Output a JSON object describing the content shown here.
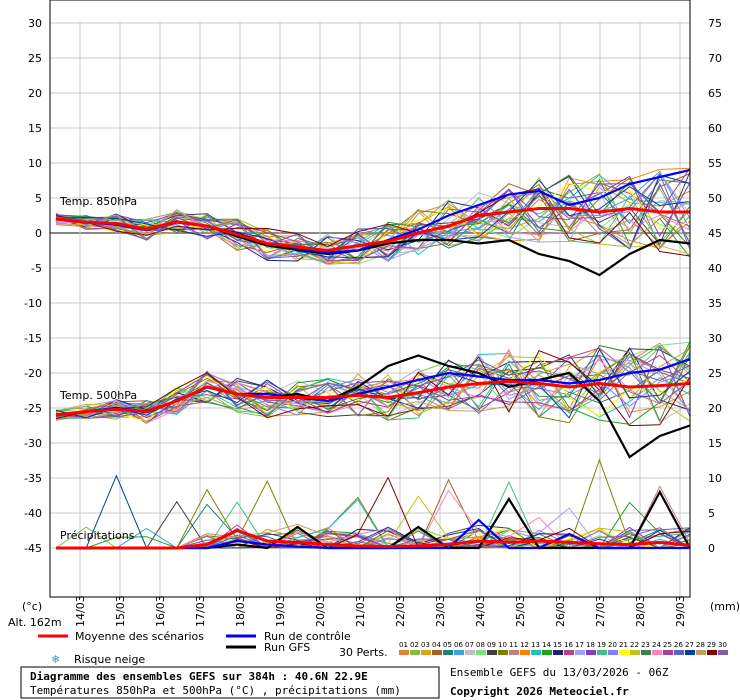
{
  "chart_data": {
    "type": "line",
    "x_dates": [
      "14/03",
      "15/03",
      "16/03",
      "17/03",
      "18/03",
      "19/03",
      "20/03",
      "21/03",
      "22/03",
      "23/03",
      "24/03",
      "25/03",
      "26/03",
      "27/03",
      "28/03",
      "29/03"
    ],
    "x_day_range": [
      13.25,
      29.25
    ],
    "y_left_ticks": [
      30,
      25,
      20,
      15,
      10,
      5,
      0,
      -5,
      -10,
      -15,
      -20,
      -25,
      -30,
      -35,
      -40,
      -45
    ],
    "y_left_range": [
      -45,
      30
    ],
    "y_right_ticks": [
      75,
      70,
      65,
      60,
      55,
      50,
      45,
      40,
      35,
      30,
      25,
      20,
      15,
      10,
      5,
      0
    ],
    "y_right_range": [
      0,
      75
    ],
    "left_unit": "(°c)",
    "right_unit": "(mm)",
    "altitude": "Alt. 162m",
    "annotations": {
      "t850": "Temp. 850hPa",
      "t500": "Temp. 500hPa",
      "precip": "Précipitations"
    },
    "series": [
      {
        "name": "Moyenne des scénarios",
        "color": "#ff0000",
        "t850": [
          2,
          1.5,
          1.4,
          0.5,
          1.6,
          1.0,
          -0.2,
          -1.5,
          -2,
          -2.5,
          -1.8,
          -1.2,
          0,
          1,
          2.5,
          3,
          3.5,
          3.5,
          3,
          3.5,
          3,
          3
        ],
        "t500": [
          -26,
          -25.5,
          -25.2,
          -25.5,
          -24,
          -22,
          -23,
          -23.5,
          -23.5,
          -23.5,
          -23.2,
          -23.5,
          -22.8,
          -22,
          -21.5,
          -21.2,
          -21.5,
          -22,
          -21.5,
          -22,
          -21.8,
          -21.5
        ],
        "precip": [
          0,
          0,
          0,
          0,
          0,
          0.5,
          2.5,
          1,
          0.8,
          0.5,
          0.3,
          0.2,
          0.3,
          0.5,
          1,
          0.8,
          1,
          0.8,
          0.6,
          0.5,
          0.8,
          0.4
        ]
      },
      {
        "name": "Run de contrôle",
        "color": "#0000ff",
        "t850": [
          2,
          1.5,
          1.2,
          0.4,
          1.5,
          1,
          0,
          -1.5,
          -2.2,
          -2.8,
          -2.5,
          -1,
          0.5,
          2.5,
          4,
          5.5,
          6,
          4,
          5,
          7,
          8,
          9
        ],
        "t500": [
          -26,
          -25.5,
          -25,
          -25.5,
          -24,
          -22,
          -23,
          -23,
          -23.5,
          -24,
          -23,
          -22,
          -21,
          -20,
          -20.5,
          -21,
          -21,
          -21.5,
          -21,
          -20,
          -19.5,
          -18
        ],
        "precip": [
          0,
          0,
          0,
          0,
          0,
          0,
          1,
          0.5,
          0.2,
          0,
          0,
          0,
          0,
          0,
          4,
          0,
          0,
          2,
          0,
          0,
          0,
          0
        ]
      },
      {
        "name": "Run GFS",
        "color": "#000000",
        "t850": [
          2,
          1.5,
          1.3,
          0.4,
          1.6,
          1,
          -0.5,
          -1.8,
          -2.4,
          -3,
          -2.5,
          -1.5,
          -1,
          -1,
          -1.5,
          -1,
          -3,
          -4,
          -6,
          -3,
          -1,
          -1.5
        ],
        "t500": [
          -26,
          -25.5,
          -25,
          -25.6,
          -24,
          -22,
          -23,
          -23.5,
          -23,
          -24,
          -22,
          -19,
          -17.5,
          -19,
          -20,
          -22,
          -21,
          -20,
          -24,
          -32,
          -29,
          -27.5
        ],
        "precip": [
          0,
          0,
          0,
          0,
          0,
          0,
          0.5,
          0,
          3,
          0,
          0,
          0,
          3,
          0,
          0,
          7,
          0,
          0,
          0,
          0,
          8,
          0
        ]
      }
    ],
    "legend": {
      "mean": "Moyenne des scénarios",
      "control": "Run de contrôle",
      "gfs": "Run GFS",
      "snow": "Risque neige",
      "perts_label": "30 Perts.",
      "perts_numbers": [
        "01",
        "02",
        "03",
        "04",
        "05",
        "06",
        "07",
        "08",
        "09",
        "10",
        "11",
        "12",
        "13",
        "14",
        "15",
        "16",
        "17",
        "18",
        "19",
        "20",
        "21",
        "22",
        "23",
        "24",
        "25",
        "26",
        "27",
        "28",
        "29",
        "30"
      ],
      "perts_colors": [
        "#e08040",
        "#80c040",
        "#e0a020",
        "#a06020",
        "#208080",
        "#40a0e0",
        "#c0c0c0",
        "#80e080",
        "#404040",
        "#808000",
        "#c08080",
        "#ff8000",
        "#20c0c0",
        "#20a020",
        "#202080",
        "#c04080",
        "#a0a0ff",
        "#8040c0",
        "#40c080",
        "#8080ff",
        "#ffff00",
        "#c0c020",
        "#408040",
        "#ff80c0",
        "#a040a0",
        "#6060c0",
        "#0040a0",
        "#c0a060",
        "#800000",
        "#8060a0"
      ]
    },
    "footer": {
      "title": "Diagramme des ensembles GEFS sur 384h : 40.6N 22.9E",
      "subtitle": "Températures 850hPa et 500hPa (°C) , précipitations (mm)",
      "run": "Ensemble GEFS du 13/03/2026 - 06Z",
      "copyright": "Copyright 2026 Meteociel.fr"
    }
  }
}
